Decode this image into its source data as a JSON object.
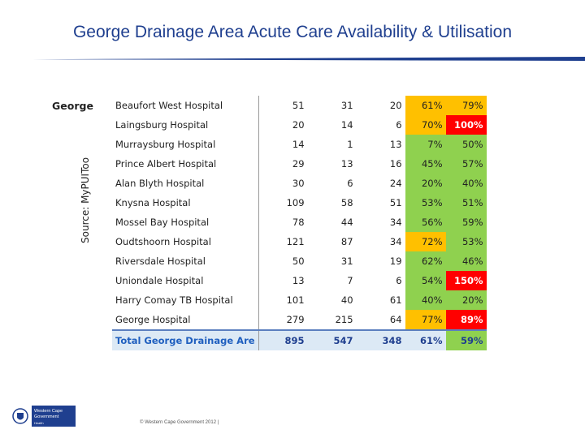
{
  "slide": {
    "title": "George Drainage Area Acute Care Availability & Utilisation"
  },
  "source_label": "Source: MyPUIToo",
  "region": "George",
  "colors": {
    "green": "#8fd14f",
    "orange": "#ffc000",
    "red": "#ff0000",
    "title_blue": "#1f3f8f"
  },
  "rows": [
    {
      "hospital": "Beaufort West Hospital",
      "c1": "51",
      "c2": "31",
      "c3": "20",
      "p1": "61%",
      "p1_color": "orange",
      "p2": "79%",
      "p2_color": "orange"
    },
    {
      "hospital": "Laingsburg Hospital",
      "c1": "20",
      "c2": "14",
      "c3": "6",
      "p1": "70%",
      "p1_color": "orange",
      "p2": "100%",
      "p2_color": "red"
    },
    {
      "hospital": "Murraysburg Hospital",
      "c1": "14",
      "c2": "1",
      "c3": "13",
      "p1": "7%",
      "p1_color": "green",
      "p2": "50%",
      "p2_color": "green"
    },
    {
      "hospital": "Prince Albert Hospital",
      "c1": "29",
      "c2": "13",
      "c3": "16",
      "p1": "45%",
      "p1_color": "green",
      "p2": "57%",
      "p2_color": "green"
    },
    {
      "hospital": "Alan Blyth Hospital",
      "c1": "30",
      "c2": "6",
      "c3": "24",
      "p1": "20%",
      "p1_color": "green",
      "p2": "40%",
      "p2_color": "green"
    },
    {
      "hospital": "Knysna Hospital",
      "c1": "109",
      "c2": "58",
      "c3": "51",
      "p1": "53%",
      "p1_color": "green",
      "p2": "51%",
      "p2_color": "green"
    },
    {
      "hospital": "Mossel Bay Hospital",
      "c1": "78",
      "c2": "44",
      "c3": "34",
      "p1": "56%",
      "p1_color": "green",
      "p2": "59%",
      "p2_color": "green"
    },
    {
      "hospital": "Oudtshoorn Hospital",
      "c1": "121",
      "c2": "87",
      "c3": "34",
      "p1": "72%",
      "p1_color": "orange",
      "p2": "53%",
      "p2_color": "green"
    },
    {
      "hospital": "Riversdale Hospital",
      "c1": "50",
      "c2": "31",
      "c3": "19",
      "p1": "62%",
      "p1_color": "green",
      "p2": "46%",
      "p2_color": "green"
    },
    {
      "hospital": "Uniondale Hospital",
      "c1": "13",
      "c2": "7",
      "c3": "6",
      "p1": "54%",
      "p1_color": "green",
      "p2": "150%",
      "p2_color": "red"
    },
    {
      "hospital": "Harry Comay TB Hospital",
      "c1": "101",
      "c2": "40",
      "c3": "61",
      "p1": "40%",
      "p1_color": "green",
      "p2": "20%",
      "p2_color": "green"
    },
    {
      "hospital": "George Hospital",
      "c1": "279",
      "c2": "215",
      "c3": "64",
      "p1": "77%",
      "p1_color": "orange",
      "p2": "89%",
      "p2_color": "red"
    }
  ],
  "total": {
    "hospital": "Total George Drainage Are",
    "c1": "895",
    "c2": "547",
    "c3": "348",
    "p1": "61%",
    "p2": "59%",
    "p2_color": "green"
  },
  "logo": {
    "line1": "Western Cape",
    "line2": "Government",
    "line3": "Health"
  },
  "footer": {
    "text": "© Western Cape Government 2012 |"
  }
}
